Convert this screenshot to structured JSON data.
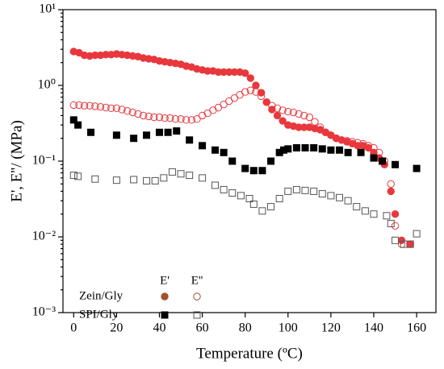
{
  "chart_data": {
    "type": "scatter",
    "x_label": "Temperature (ºC)",
    "y_label": "E', E''/ (MPa)",
    "log_y": true,
    "xlim": [
      -5,
      169
    ],
    "ylim": [
      0.001,
      10
    ],
    "xticks": [
      0,
      20,
      40,
      60,
      80,
      100,
      120,
      140,
      160
    ],
    "yticks": [
      {
        "value": 0.001,
        "label": "10⁻³"
      },
      {
        "value": 0.01,
        "label": "10⁻²"
      },
      {
        "value": 0.1,
        "label": "10⁻¹"
      },
      {
        "value": 1,
        "label": "10⁰"
      },
      {
        "value": 10,
        "label": "10¹"
      }
    ],
    "legend": {
      "columns": [
        "E'",
        "E''"
      ],
      "rows": [
        "Zein/Gly",
        "SPI/Gly"
      ],
      "legend_color": "#a0522d"
    },
    "series": [
      {
        "marker": "circle",
        "filled": true,
        "color": "#e8383d",
        "legend_row": 0,
        "legend_col": 0,
        "x": [
          0,
          2.5,
          5,
          7.5,
          10,
          12.5,
          15,
          17.5,
          20,
          22.5,
          25,
          27.5,
          30,
          32.5,
          35,
          37.5,
          40,
          42.5,
          45,
          47.5,
          50,
          52.5,
          55,
          57.5,
          60,
          62.5,
          65,
          67.5,
          70,
          72.5,
          75,
          77.5,
          80,
          82.5,
          85,
          87.5,
          90,
          92.5,
          95,
          97.5,
          100,
          102.5,
          105,
          107.5,
          110,
          112.5,
          115,
          117.5,
          120,
          122.5,
          125,
          127.5,
          130,
          132.5,
          135,
          137.5,
          140,
          142.5,
          145,
          148,
          150,
          153,
          157
        ],
        "values": [
          2.8,
          2.7,
          2.5,
          2.45,
          2.5,
          2.5,
          2.55,
          2.55,
          2.6,
          2.55,
          2.5,
          2.45,
          2.4,
          2.3,
          2.25,
          2.2,
          2.1,
          2.05,
          2.0,
          1.95,
          1.9,
          1.8,
          1.75,
          1.65,
          1.6,
          1.55,
          1.55,
          1.5,
          1.5,
          1.5,
          1.5,
          1.5,
          1.45,
          1.25,
          1.0,
          0.8,
          0.6,
          0.48,
          0.4,
          0.34,
          0.3,
          0.29,
          0.28,
          0.28,
          0.28,
          0.27,
          0.26,
          0.24,
          0.22,
          0.2,
          0.19,
          0.18,
          0.17,
          0.16,
          0.16,
          0.15,
          0.13,
          0.11,
          0.09,
          0.04,
          0.02,
          0.009,
          0.008
        ]
      },
      {
        "marker": "circle",
        "filled": false,
        "color": "#e8383d",
        "legend_row": 0,
        "legend_col": 1,
        "x": [
          0,
          2.5,
          5,
          7.5,
          10,
          12.5,
          15,
          17.5,
          20,
          22.5,
          25,
          27.5,
          30,
          32.5,
          35,
          37.5,
          40,
          42.5,
          45,
          47.5,
          50,
          52.5,
          55,
          57.5,
          60,
          62.5,
          65,
          67.5,
          70,
          72.5,
          75,
          77.5,
          80,
          82.5,
          85,
          87.5,
          90,
          92.5,
          95,
          97.5,
          100,
          102.5,
          105,
          107.5,
          110,
          112.5,
          115,
          117.5,
          120,
          122.5,
          125,
          127.5,
          130,
          132.5,
          135,
          137.5,
          140,
          142.5,
          145,
          148,
          150,
          153
        ],
        "values": [
          0.55,
          0.55,
          0.54,
          0.54,
          0.53,
          0.52,
          0.51,
          0.5,
          0.5,
          0.48,
          0.46,
          0.44,
          0.42,
          0.4,
          0.39,
          0.38,
          0.38,
          0.37,
          0.37,
          0.36,
          0.36,
          0.35,
          0.35,
          0.36,
          0.4,
          0.43,
          0.47,
          0.51,
          0.56,
          0.62,
          0.68,
          0.75,
          0.82,
          0.86,
          0.82,
          0.72,
          0.6,
          0.54,
          0.5,
          0.47,
          0.45,
          0.44,
          0.42,
          0.4,
          0.38,
          0.33,
          0.28,
          0.24,
          0.22,
          0.2,
          0.19,
          0.185,
          0.18,
          0.175,
          0.17,
          0.16,
          0.15,
          0.13,
          0.1,
          0.05,
          0.014,
          0.008
        ]
      },
      {
        "marker": "square",
        "filled": true,
        "color": "#000000",
        "legend_row": 1,
        "legend_col": 0,
        "x": [
          0,
          2,
          8,
          20,
          28,
          34,
          40,
          44,
          48,
          54,
          60,
          66,
          70,
          74,
          80,
          84,
          88,
          92,
          96,
          98,
          100,
          104,
          108,
          112,
          116,
          120,
          124,
          128,
          134,
          140,
          144,
          150,
          160
        ],
        "values": [
          0.35,
          0.3,
          0.24,
          0.22,
          0.2,
          0.22,
          0.24,
          0.24,
          0.25,
          0.19,
          0.16,
          0.14,
          0.13,
          0.1,
          0.08,
          0.075,
          0.075,
          0.1,
          0.13,
          0.14,
          0.145,
          0.15,
          0.15,
          0.15,
          0.145,
          0.14,
          0.14,
          0.13,
          0.13,
          0.11,
          0.1,
          0.09,
          0.08
        ]
      },
      {
        "marker": "square",
        "filled": false,
        "color": "#555555",
        "legend_row": 1,
        "legend_col": 1,
        "x": [
          0,
          2,
          10,
          20,
          28,
          34,
          38,
          42,
          46,
          50,
          54,
          60,
          66,
          70,
          74,
          78,
          82,
          84,
          88,
          92,
          96,
          100,
          104,
          108,
          112,
          116,
          120,
          124,
          128,
          132,
          136,
          140,
          146,
          148,
          150,
          154,
          157,
          160
        ],
        "values": [
          0.065,
          0.063,
          0.058,
          0.056,
          0.057,
          0.055,
          0.055,
          0.06,
          0.072,
          0.068,
          0.065,
          0.06,
          0.048,
          0.042,
          0.038,
          0.035,
          0.032,
          0.027,
          0.022,
          0.025,
          0.032,
          0.04,
          0.042,
          0.041,
          0.04,
          0.037,
          0.035,
          0.033,
          0.03,
          0.025,
          0.022,
          0.02,
          0.019,
          0.015,
          0.009,
          0.008,
          0.008,
          0.011
        ]
      }
    ]
  }
}
